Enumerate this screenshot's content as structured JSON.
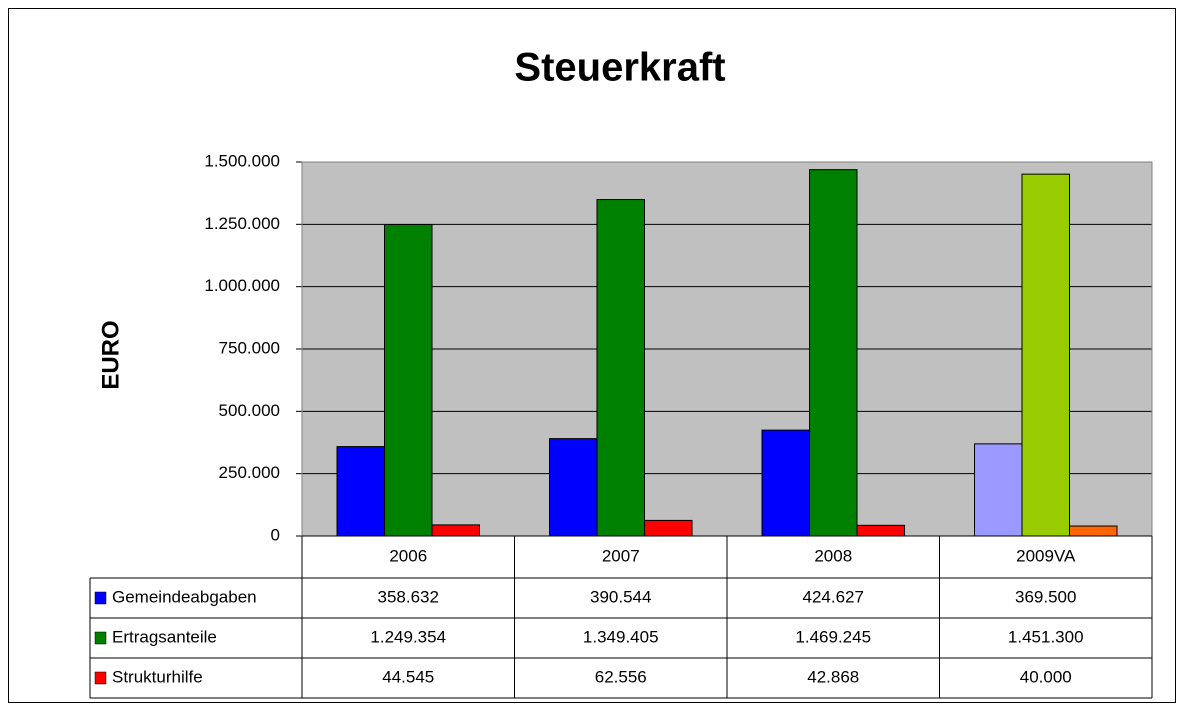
{
  "chart_data": {
    "type": "bar",
    "title": "Steuerkraft",
    "y_label": "EURO",
    "categories": [
      "2006",
      "2007",
      "2008",
      "2009VA"
    ],
    "series": [
      {
        "name": "Gemeindeabgaben",
        "color": "#0000ff",
        "colors": [
          "#0000ff",
          "#0000ff",
          "#0000ff",
          "#9999ff"
        ],
        "values": [
          358632,
          390544,
          424627,
          369500
        ],
        "value_labels": [
          "358.632",
          "390.544",
          "424.627",
          "369.500"
        ]
      },
      {
        "name": "Ertragsanteile",
        "color": "#008000",
        "colors": [
          "#008000",
          "#008000",
          "#008000",
          "#99cc00"
        ],
        "values": [
          1249354,
          1349405,
          1469245,
          1451300
        ],
        "value_labels": [
          "1.249.354",
          "1.349.405",
          "1.469.245",
          "1.451.300"
        ]
      },
      {
        "name": "Strukturhilfe",
        "color": "#ff0000",
        "colors": [
          "#ff0000",
          "#ff0000",
          "#ff0000",
          "#ff6600"
        ],
        "values": [
          44545,
          62556,
          42868,
          40000
        ],
        "value_labels": [
          "44.545",
          "62.556",
          "42.868",
          "40.000"
        ]
      }
    ],
    "ylim": [
      0,
      1500000
    ],
    "yticks": [
      0,
      {
        "value": 250000,
        "label": "250.000"
      },
      {
        "value": 500000,
        "label": "500.000"
      },
      {
        "value": 750000,
        "label": "750.000"
      },
      {
        "value": 1000000,
        "label": "1.000.000"
      },
      {
        "value": 1250000,
        "label": "1.250.000"
      },
      {
        "value": 1500000,
        "label": "1.500.000"
      }
    ],
    "grid": true,
    "plot_background": "#c0c0c0",
    "data_table": true
  }
}
